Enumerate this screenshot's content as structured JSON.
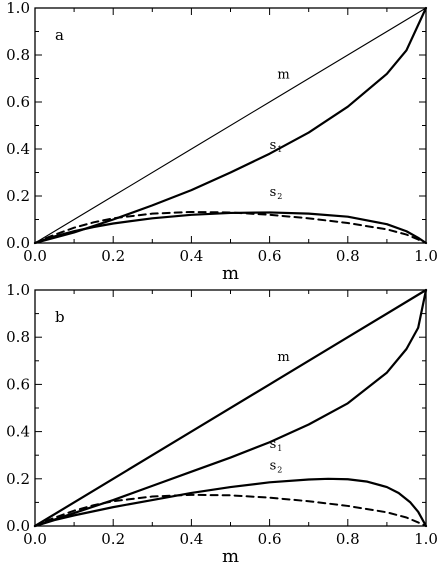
{
  "chart_data": [
    {
      "type": "line",
      "panel_label": "a",
      "xlabel": "m",
      "ylabel": "",
      "xlim": [
        0,
        1
      ],
      "ylim": [
        0,
        1
      ],
      "xticks": [
        "0.0",
        "0.2",
        "0.4",
        "0.6",
        "0.8",
        "1.0"
      ],
      "yticks": [
        "0.0",
        "0.2",
        "0.4",
        "0.6",
        "0.8",
        "1.0"
      ],
      "grid": false,
      "annotations": [
        {
          "text": "m",
          "sub": "",
          "x": 0.62,
          "y": 0.7
        },
        {
          "text": "s",
          "sub": "1",
          "x": 0.6,
          "y": 0.4
        },
        {
          "text": "s",
          "sub": "2",
          "x": 0.6,
          "y": 0.2
        }
      ],
      "series": [
        {
          "style": "thin",
          "x": [
            0,
            0.2,
            0.4,
            0.6,
            0.8,
            1.0
          ],
          "y": [
            0,
            0.2,
            0.4,
            0.6,
            0.8,
            1.0
          ]
        },
        {
          "style": "thick",
          "x": [
            0,
            0.1,
            0.2,
            0.3,
            0.4,
            0.5,
            0.6,
            0.7,
            0.8,
            0.9,
            0.95,
            1.0
          ],
          "y": [
            0,
            0.045,
            0.1,
            0.16,
            0.225,
            0.3,
            0.38,
            0.47,
            0.58,
            0.72,
            0.82,
            1.0
          ]
        },
        {
          "style": "thick",
          "x": [
            0,
            0.02,
            0.05,
            0.1,
            0.15,
            0.2,
            0.3,
            0.4,
            0.5,
            0.6,
            0.7,
            0.8,
            0.9,
            0.95,
            0.98,
            1.0
          ],
          "y": [
            0,
            0.012,
            0.028,
            0.05,
            0.068,
            0.083,
            0.105,
            0.12,
            0.128,
            0.13,
            0.125,
            0.112,
            0.08,
            0.05,
            0.022,
            0
          ]
        },
        {
          "style": "dashed",
          "x": [
            0,
            0.02,
            0.05,
            0.1,
            0.15,
            0.2,
            0.3,
            0.4,
            0.5,
            0.6,
            0.7,
            0.8,
            0.9,
            0.95,
            0.98,
            1.0
          ],
          "y": [
            0,
            0.015,
            0.035,
            0.065,
            0.088,
            0.105,
            0.125,
            0.132,
            0.13,
            0.12,
            0.105,
            0.085,
            0.058,
            0.036,
            0.015,
            0
          ]
        }
      ]
    },
    {
      "type": "line",
      "panel_label": "b",
      "xlabel": "m",
      "ylabel": "",
      "xlim": [
        0,
        1
      ],
      "ylim": [
        0,
        1
      ],
      "xticks": [
        "0.0",
        "0.2",
        "0.4",
        "0.6",
        "0.8",
        "1.0"
      ],
      "yticks": [
        "0.0",
        "0.2",
        "0.4",
        "0.6",
        "0.8",
        "1.0"
      ],
      "grid": false,
      "annotations": [
        {
          "text": "m",
          "sub": "",
          "x": 0.62,
          "y": 0.7
        },
        {
          "text": "s",
          "sub": "1",
          "x": 0.6,
          "y": 0.33
        },
        {
          "text": "s",
          "sub": "2",
          "x": 0.6,
          "y": 0.24
        }
      ],
      "series": [
        {
          "style": "thick",
          "x": [
            0,
            0.2,
            0.4,
            0.6,
            0.8,
            1.0
          ],
          "y": [
            0,
            0.2,
            0.4,
            0.6,
            0.8,
            1.0
          ]
        },
        {
          "style": "thick",
          "x": [
            0,
            0.1,
            0.2,
            0.3,
            0.4,
            0.5,
            0.6,
            0.7,
            0.8,
            0.9,
            0.95,
            0.98,
            1.0
          ],
          "y": [
            0,
            0.055,
            0.11,
            0.17,
            0.23,
            0.29,
            0.355,
            0.43,
            0.52,
            0.65,
            0.75,
            0.84,
            1.0
          ]
        },
        {
          "style": "thick",
          "x": [
            0,
            0.02,
            0.05,
            0.1,
            0.2,
            0.3,
            0.4,
            0.5,
            0.6,
            0.7,
            0.75,
            0.8,
            0.85,
            0.9,
            0.93,
            0.96,
            0.98,
            1.0
          ],
          "y": [
            0,
            0.01,
            0.025,
            0.045,
            0.08,
            0.11,
            0.14,
            0.165,
            0.185,
            0.197,
            0.2,
            0.198,
            0.188,
            0.165,
            0.14,
            0.1,
            0.06,
            0
          ]
        },
        {
          "style": "dashed",
          "x": [
            0,
            0.02,
            0.05,
            0.1,
            0.15,
            0.2,
            0.3,
            0.4,
            0.5,
            0.6,
            0.7,
            0.8,
            0.9,
            0.95,
            0.98,
            1.0
          ],
          "y": [
            0,
            0.015,
            0.035,
            0.065,
            0.088,
            0.105,
            0.125,
            0.132,
            0.13,
            0.12,
            0.105,
            0.085,
            0.058,
            0.036,
            0.015,
            0
          ]
        }
      ]
    }
  ]
}
